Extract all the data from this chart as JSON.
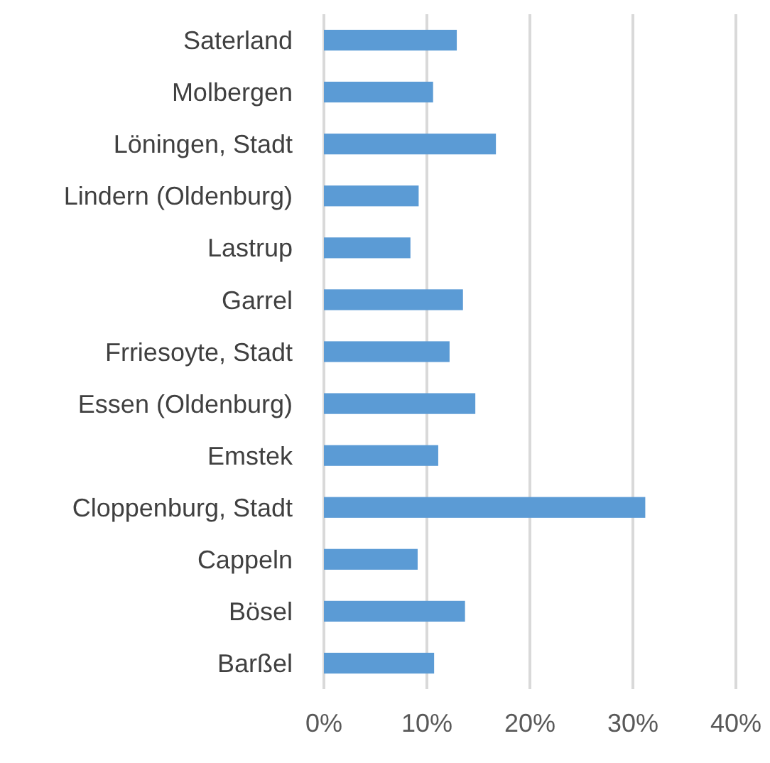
{
  "chart_data": {
    "type": "bar",
    "orientation": "horizontal",
    "categories": [
      "Saterland",
      "Molbergen",
      "Löningen, Stadt",
      "Lindern (Oldenburg)",
      "Lastrup",
      "Garrel",
      "Frriesoyte, Stadt",
      "Essen (Oldenburg)",
      "Emstek",
      "Cloppenburg, Stadt",
      "Cappeln",
      "Bösel",
      "Barßel"
    ],
    "values": [
      12.9,
      10.6,
      16.7,
      9.2,
      8.4,
      13.5,
      12.2,
      14.7,
      11.1,
      31.2,
      9.1,
      13.7,
      10.7
    ],
    "color": "#5b9bd5",
    "xlim": [
      0,
      40
    ],
    "xticks": [
      {
        "value": 0,
        "label": "0%"
      },
      {
        "value": 10,
        "label": "10%"
      },
      {
        "value": 20,
        "label": "20%"
      },
      {
        "value": 30,
        "label": "30%"
      },
      {
        "value": 40,
        "label": "40%"
      }
    ],
    "grid": "x"
  }
}
